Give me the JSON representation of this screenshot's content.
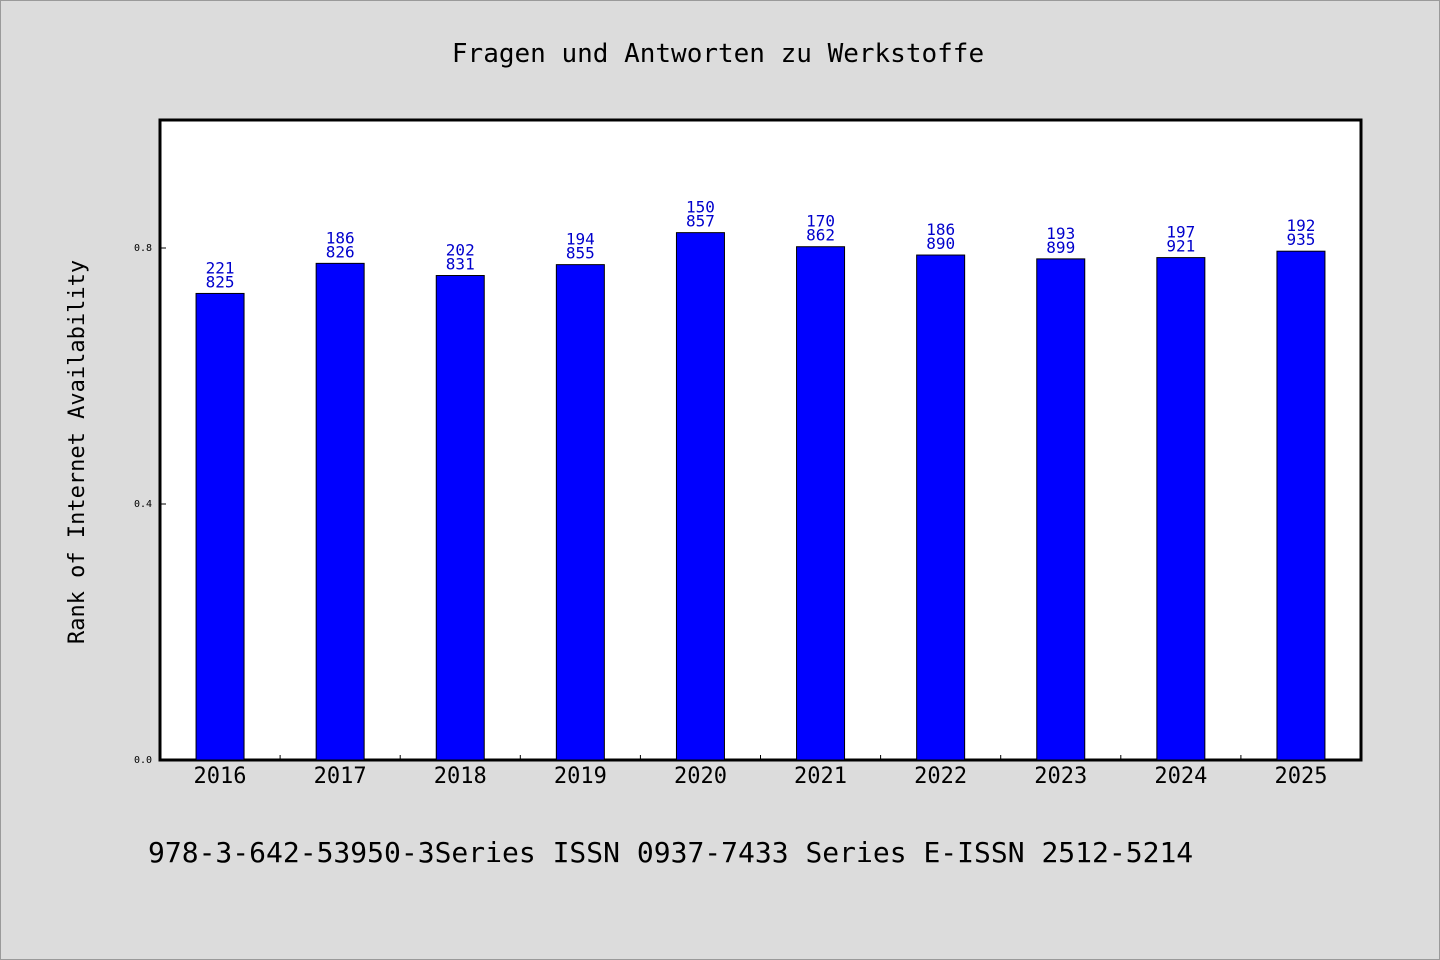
{
  "chart_data": {
    "type": "bar",
    "title": "Fragen und Antworten zu Werkstoffe",
    "xlabel": "",
    "ylabel": "Rank of Internet Availability",
    "footer": "978-3-642-53950-3Series ISSN 0937-7433 Series E-ISSN 2512-5214",
    "categories": [
      "2016",
      "2017",
      "2018",
      "2019",
      "2020",
      "2021",
      "2022",
      "2023",
      "2024",
      "2025"
    ],
    "values": [
      0.729,
      0.776,
      0.757,
      0.774,
      0.824,
      0.802,
      0.789,
      0.783,
      0.785,
      0.795
    ],
    "label_top": [
      "221",
      "186",
      "202",
      "194",
      "150",
      "170",
      "186",
      "193",
      "197",
      "192"
    ],
    "label_bottom": [
      "825",
      "826",
      "831",
      "855",
      "857",
      "862",
      "890",
      "899",
      "921",
      "935"
    ],
    "yticks": [
      "0.0",
      "0.4",
      "0.8"
    ],
    "ylim": [
      0,
      1.0
    ],
    "grid": false,
    "colors": {
      "bar": "#0000ff",
      "label": "#0000cc",
      "background": "#dcdcdc",
      "plot": "#ffffff"
    }
  }
}
